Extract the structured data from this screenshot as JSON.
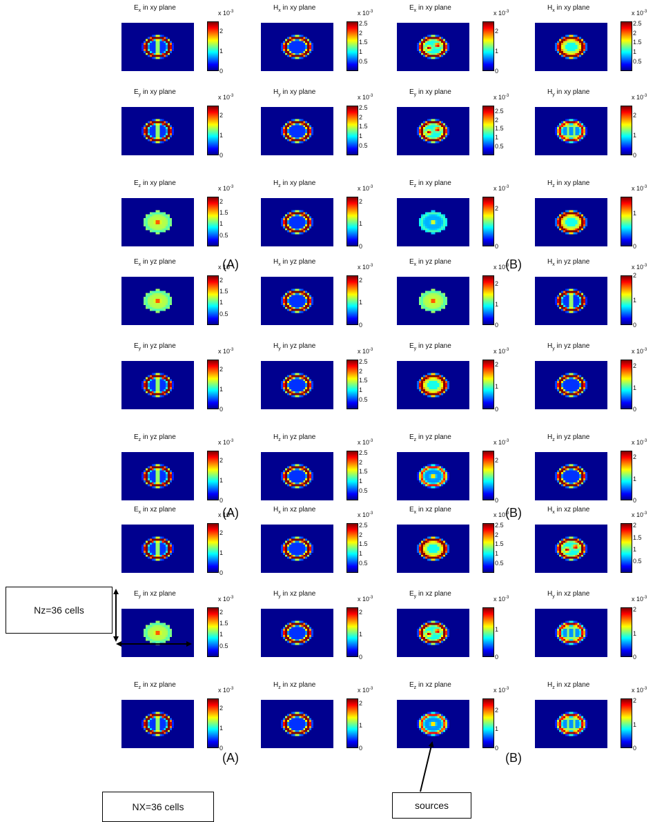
{
  "chart_data": {
    "type": "heatmap",
    "multiplier": "x 10",
    "multiplier_exponent": "-3",
    "planes": [
      {
        "plane": "xy plane",
        "groups": [
          "(A)",
          "(B)"
        ],
        "panels": [
          {
            "field": "E",
            "sub": "x",
            "ticks": [
              "2",
              "1",
              "0"
            ],
            "cmax": 2.5,
            "pattern": "ring-cross"
          },
          {
            "field": "H",
            "sub": "x",
            "ticks": [
              "2.5",
              "2",
              "1.5",
              "1",
              "0.5"
            ],
            "cmax": 2.6,
            "pattern": "ring"
          },
          {
            "field": "E",
            "sub": "x",
            "ticks": [
              "2",
              "1",
              "0"
            ],
            "cmax": 2.5,
            "pattern": "ring-dots"
          },
          {
            "field": "H",
            "sub": "x",
            "ticks": [
              "2.5",
              "2",
              "1.5",
              "1",
              "0.5"
            ],
            "cmax": 2.6,
            "pattern": "warm-ring"
          },
          {
            "field": "E",
            "sub": "y",
            "ticks": [
              "2",
              "1",
              "0"
            ],
            "cmax": 2.5,
            "pattern": "ring-cross"
          },
          {
            "field": "H",
            "sub": "y",
            "ticks": [
              "2.5",
              "2",
              "1.5",
              "1",
              "0.5"
            ],
            "cmax": 2.6,
            "pattern": "ring"
          },
          {
            "field": "E",
            "sub": "y",
            "ticks": [
              "2.5",
              "2",
              "1.5",
              "1",
              "0.5"
            ],
            "cmax": 2.8,
            "pattern": "ring-dots"
          },
          {
            "field": "H",
            "sub": "y",
            "ticks": [
              "2",
              "1",
              "0"
            ],
            "cmax": 2.5,
            "pattern": "grid"
          },
          {
            "field": "E",
            "sub": "z",
            "ticks": [
              "2",
              "1.5",
              "1",
              "0.5"
            ],
            "cmax": 2.2,
            "pattern": "center"
          },
          {
            "field": "H",
            "sub": "z",
            "ticks": [
              "2",
              "1",
              "0"
            ],
            "cmax": 2.2,
            "pattern": "ring"
          },
          {
            "field": "E",
            "sub": "z",
            "ticks": [
              "2",
              "0"
            ],
            "cmax": 2.6,
            "pattern": "center-faint"
          },
          {
            "field": "H",
            "sub": "z",
            "ticks": [
              "1",
              "0"
            ],
            "cmax": 1.5,
            "pattern": "warm-ring"
          }
        ]
      },
      {
        "plane": "yz plane",
        "groups": [
          "(A)",
          "(B)"
        ],
        "panels": [
          {
            "field": "E",
            "sub": "x",
            "ticks": [
              "2",
              "1.5",
              "1",
              "0.5"
            ],
            "cmax": 2.2,
            "pattern": "center"
          },
          {
            "field": "H",
            "sub": "x",
            "ticks": [
              "2",
              "1",
              "0"
            ],
            "cmax": 2.2,
            "pattern": "ring"
          },
          {
            "field": "E",
            "sub": "x",
            "ticks": [
              "2",
              "1",
              "0"
            ],
            "cmax": 2.4,
            "pattern": "center"
          },
          {
            "field": "H",
            "sub": "x",
            "ticks": [
              "2",
              "1",
              "0"
            ],
            "cmax": 2.0,
            "pattern": "ring-cross"
          },
          {
            "field": "E",
            "sub": "y",
            "ticks": [
              "2",
              "1",
              "0"
            ],
            "cmax": 2.5,
            "pattern": "ring-cross"
          },
          {
            "field": "H",
            "sub": "y",
            "ticks": [
              "2.5",
              "2",
              "1.5",
              "1",
              "0.5"
            ],
            "cmax": 2.6,
            "pattern": "ring"
          },
          {
            "field": "E",
            "sub": "y",
            "ticks": [
              "2",
              "1",
              "0"
            ],
            "cmax": 2.2,
            "pattern": "warm-ring"
          },
          {
            "field": "H",
            "sub": "y",
            "ticks": [
              "2",
              "1",
              "0"
            ],
            "cmax": 2.3,
            "pattern": "ring"
          },
          {
            "field": "E",
            "sub": "z",
            "ticks": [
              "2",
              "1",
              "0"
            ],
            "cmax": 2.5,
            "pattern": "ring-cross"
          },
          {
            "field": "H",
            "sub": "z",
            "ticks": [
              "2.5",
              "2",
              "1.5",
              "1",
              "0.5"
            ],
            "cmax": 2.6,
            "pattern": "ring"
          },
          {
            "field": "E",
            "sub": "z",
            "ticks": [
              "2",
              "0"
            ],
            "cmax": 2.5,
            "pattern": "ring-center"
          },
          {
            "field": "H",
            "sub": "z",
            "ticks": [
              "2",
              "1",
              "0"
            ],
            "cmax": 2.3,
            "pattern": "ring"
          }
        ]
      },
      {
        "plane": "xz plane",
        "groups": [
          "(A)",
          "(B)"
        ],
        "panels": [
          {
            "field": "E",
            "sub": "x",
            "ticks": [
              "2",
              "1",
              "0"
            ],
            "cmax": 2.5,
            "pattern": "ring-cross"
          },
          {
            "field": "H",
            "sub": "x",
            "ticks": [
              "2.5",
              "2",
              "1.5",
              "1",
              "0.5"
            ],
            "cmax": 2.6,
            "pattern": "ring"
          },
          {
            "field": "E",
            "sub": "x",
            "ticks": [
              "2.5",
              "2",
              "1.5",
              "1",
              "0.5"
            ],
            "cmax": 2.6,
            "pattern": "warm-ring"
          },
          {
            "field": "H",
            "sub": "x",
            "ticks": [
              "2",
              "1.5",
              "1",
              "0.5"
            ],
            "cmax": 2.1,
            "pattern": "ring-dots"
          },
          {
            "field": "E",
            "sub": "y",
            "ticks": [
              "2",
              "1.5",
              "1",
              "0.5"
            ],
            "cmax": 2.2,
            "pattern": "center"
          },
          {
            "field": "H",
            "sub": "y",
            "ticks": [
              "2",
              "1",
              "0"
            ],
            "cmax": 2.2,
            "pattern": "ring"
          },
          {
            "field": "E",
            "sub": "y",
            "ticks": [
              "1",
              "0"
            ],
            "cmax": 1.8,
            "pattern": "ring-dots"
          },
          {
            "field": "H",
            "sub": "y",
            "ticks": [
              "2",
              "1",
              "0"
            ],
            "cmax": 2.1,
            "pattern": "grid"
          },
          {
            "field": "E",
            "sub": "z",
            "ticks": [
              "2",
              "1",
              "0"
            ],
            "cmax": 2.5,
            "pattern": "ring-cross"
          },
          {
            "field": "H",
            "sub": "z",
            "ticks": [
              "2",
              "1",
              "0"
            ],
            "cmax": 2.2,
            "pattern": "ring"
          },
          {
            "field": "E",
            "sub": "z",
            "ticks": [
              "2",
              "1",
              "0"
            ],
            "cmax": 2.6,
            "pattern": "ring-center"
          },
          {
            "field": "H",
            "sub": "z",
            "ticks": [
              "2",
              "1",
              "0"
            ],
            "cmax": 2.1,
            "pattern": "grid"
          }
        ]
      }
    ]
  },
  "annotations": {
    "nz_label": "Nz=36 cells",
    "nx_label": "NX=36 cells",
    "sources_label": "sources"
  },
  "colors": {
    "background_field": "#00008f",
    "colormap": [
      "#00008f",
      "#0000ff",
      "#00ffff",
      "#ffff00",
      "#ff0000",
      "#800000"
    ]
  }
}
